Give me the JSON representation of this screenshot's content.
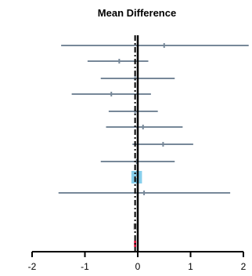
{
  "chart_data": {
    "type": "forest",
    "title": "Mean Difference",
    "xlim": [
      -2,
      2
    ],
    "xticks": [
      -2,
      -1,
      0,
      1,
      2
    ],
    "tick_labels": [
      "-2",
      "-1",
      "0",
      "1",
      "2"
    ],
    "null_line": 0,
    "pooled_line": -0.05,
    "colors": {
      "ci": "#778899",
      "summary": "#87ceeb",
      "pooled_marker": "#dc143c",
      "axis": "#000000"
    },
    "rows": [
      {
        "estimate": 0.5,
        "lower": -1.45,
        "upper": 2.1
      },
      {
        "estimate": -0.35,
        "lower": -0.95,
        "upper": 0.2
      },
      {
        "estimate": -0.05,
        "lower": -0.7,
        "upper": 0.7
      },
      {
        "estimate": -0.5,
        "lower": -1.25,
        "upper": 0.25
      },
      {
        "estimate": -0.05,
        "lower": -0.55,
        "upper": 0.38
      },
      {
        "estimate": 0.1,
        "lower": -0.6,
        "upper": 0.85
      },
      {
        "estimate": 0.48,
        "lower": -0.1,
        "upper": 1.05
      },
      {
        "estimate": -0.02,
        "lower": -0.7,
        "upper": 0.7
      },
      {
        "estimate": -0.02,
        "lower": -0.12,
        "upper": 0.08,
        "summary": true
      },
      {
        "estimate": 0.12,
        "lower": -1.5,
        "upper": 1.75
      },
      {
        "estimate": -0.05,
        "lower": -0.08,
        "upper": -0.02,
        "pooled": true,
        "gray": true
      },
      {
        "estimate": -0.05,
        "lower": -0.07,
        "upper": -0.03,
        "pooled": true
      }
    ]
  }
}
